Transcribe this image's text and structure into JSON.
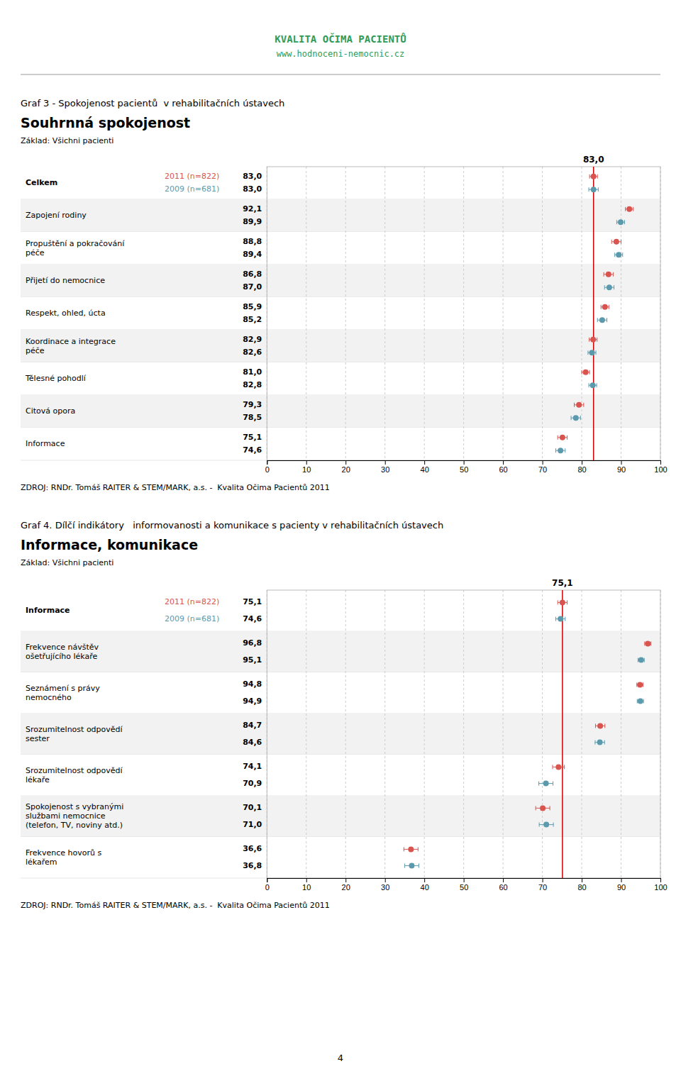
{
  "logo": {
    "texts": [
      "KVALITA OČIMA PACIENTŮ",
      "www.hodnoceni-nemocnic.cz"
    ],
    "color": "#2d9b5a"
  },
  "page_number": "4",
  "chart_data": [
    {
      "type": "dot",
      "orientation": "horizontal",
      "supertitle": "Graf 3 - Spokojenost pacientů  v rehabilitačních ústavech",
      "title": "Souhrnná spokojenost",
      "subtitle": "Základ: Všichni pacienti",
      "source": "ZDROJ: RNDr. Tomáš RAITER & STEM/MARK, a.s. -  Kvalita Očima Pacientů 2011",
      "reference_line": {
        "value": 83.0,
        "label": "83,0",
        "color": "#cc0000"
      },
      "xlim": [
        0,
        100
      ],
      "xticks": [
        0,
        10,
        20,
        30,
        40,
        50,
        60,
        70,
        80,
        90,
        100
      ],
      "grid": true,
      "data_labels": true,
      "categories": [
        "Celkem",
        "Zapojení rodiny",
        "Propuštění a pokračování\npéče",
        "Přijetí do nemocnice",
        "Respekt, ohled, úcta",
        "Koordinace a integrace\npéče",
        "Tělesné pohodlí",
        "Citová opora",
        "Informace"
      ],
      "series": [
        {
          "name": "2011 (n=822)",
          "color": "#d9534f",
          "values": [
            83.0,
            92.1,
            88.8,
            86.8,
            85.9,
            82.9,
            81.0,
            79.3,
            75.1
          ],
          "errors": [
            1.0,
            1.0,
            1.2,
            1.2,
            1.0,
            1.0,
            1.0,
            1.2,
            1.2
          ],
          "value_labels": [
            "83,0",
            "92,1",
            "88,8",
            "86,8",
            "85,9",
            "82,9",
            "81,0",
            "79,3",
            "75,1"
          ]
        },
        {
          "name": "2009 (n=681)",
          "color": "#5b9aad",
          "values": [
            83.0,
            89.9,
            89.4,
            87.0,
            85.2,
            82.6,
            82.8,
            78.5,
            74.6
          ],
          "errors": [
            1.2,
            1.0,
            1.0,
            1.2,
            1.2,
            1.0,
            1.0,
            1.2,
            1.2
          ],
          "value_labels": [
            "83,0",
            "89,9",
            "89,4",
            "87,0",
            "85,2",
            "82,6",
            "82,8",
            "78,5",
            "74,6"
          ]
        }
      ]
    },
    {
      "type": "dot",
      "orientation": "horizontal",
      "supertitle": "Graf 4. Dílčí indikátory   informovanosti a komunikace s pacienty v rehabilitačních ústavech",
      "title": "Informace, komunikace",
      "subtitle": "Základ: Všichni pacienti",
      "source": "ZDROJ: RNDr. Tomáš RAITER & STEM/MARK, a.s. -  Kvalita Očima Pacientů 2011",
      "reference_line": {
        "value": 75.1,
        "label": "75,1",
        "color": "#cc0000"
      },
      "xlim": [
        0,
        100
      ],
      "xticks": [
        0,
        10,
        20,
        30,
        40,
        50,
        60,
        70,
        80,
        90,
        100
      ],
      "grid": true,
      "data_labels": true,
      "categories": [
        "Informace",
        "Frekvence návštěv\nošetřujícího lékaře",
        "Seznámení s právy\nnemocného",
        "Srozumitelnost odpovědí\nsester",
        "Srozumitelnost odpovědí\nlékaře",
        "Spokojenost s vybranými\nslužbami nemocnice\n(telefon, TV, noviny atd.)",
        "Frekvence hovorů s\nlékařem"
      ],
      "series": [
        {
          "name": "2011 (n=822)",
          "color": "#d9534f",
          "values": [
            75.1,
            96.8,
            94.8,
            84.7,
            74.1,
            70.1,
            36.6
          ],
          "errors": [
            1.2,
            0.8,
            0.8,
            1.2,
            1.5,
            1.8,
            1.8
          ],
          "value_labels": [
            "75,1",
            "96,8",
            "94,8",
            "84,7",
            "74,1",
            "70,1",
            "36,6"
          ]
        },
        {
          "name": "2009 (n=681)",
          "color": "#5b9aad",
          "values": [
            74.6,
            95.1,
            94.9,
            84.6,
            70.9,
            71.0,
            36.8
          ],
          "errors": [
            1.2,
            0.8,
            0.8,
            1.2,
            1.8,
            1.8,
            1.8
          ],
          "value_labels": [
            "74,6",
            "95,1",
            "94,9",
            "84,6",
            "70,9",
            "71,0",
            "36,8"
          ]
        }
      ]
    }
  ]
}
